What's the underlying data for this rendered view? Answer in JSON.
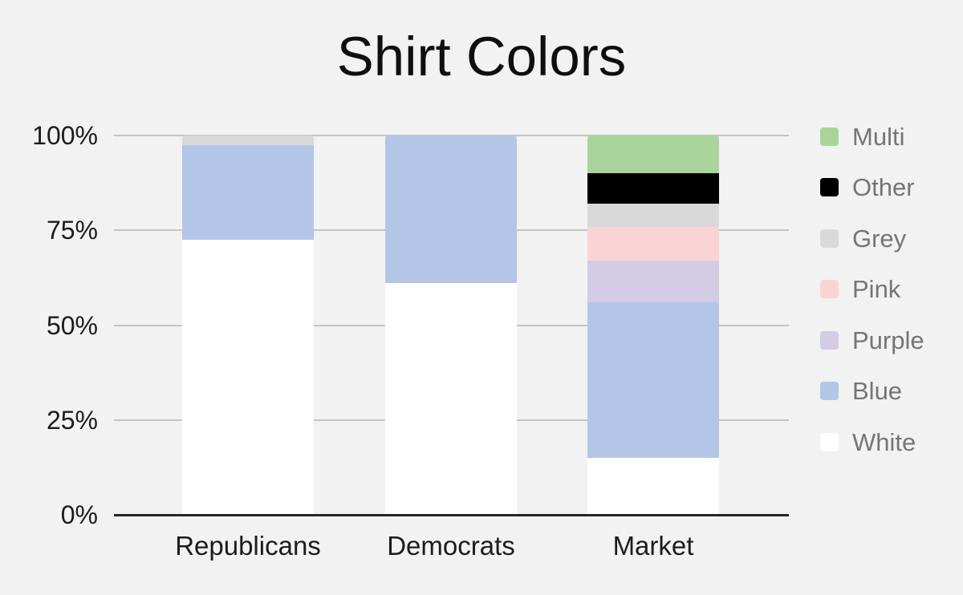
{
  "title": "Shirt Colors",
  "colors": {
    "background": "#f2f2f2",
    "gridline": "#c4c4c4",
    "axis_line": "#262626",
    "axis_label_text": "#1c1c1c",
    "title_text": "#0f0f0f",
    "legend_label_text": "#757575"
  },
  "chart_data": {
    "type": "bar",
    "stacked": true,
    "units": "percent",
    "title": "Shirt Colors",
    "xlabel": "",
    "ylabel": "",
    "ylim": [
      0,
      100
    ],
    "grid": true,
    "legend_position": "right",
    "categories": [
      "Republicans",
      "Democrats",
      "Market"
    ],
    "series": [
      {
        "name": "White",
        "color": "#ffffff",
        "values": [
          72.5,
          61,
          15
        ]
      },
      {
        "name": "Blue",
        "color": "#b4c6e7",
        "values": [
          25,
          39,
          41
        ]
      },
      {
        "name": "Purple",
        "color": "#d3cce4",
        "values": [
          0,
          0,
          11
        ]
      },
      {
        "name": "Pink",
        "color": "#fad4d4",
        "values": [
          0,
          0,
          9
        ]
      },
      {
        "name": "Grey",
        "color": "#d9d9d9",
        "values": [
          2.5,
          0,
          6
        ]
      },
      {
        "name": "Other",
        "color": "#000000",
        "values": [
          0,
          0,
          8
        ]
      },
      {
        "name": "Multi",
        "color": "#abd49c",
        "values": [
          0,
          0,
          10
        ]
      }
    ],
    "legend_order": [
      "Multi",
      "Other",
      "Grey",
      "Pink",
      "Purple",
      "Blue",
      "White"
    ],
    "y_ticks": [
      {
        "label": "0%",
        "value": 0
      },
      {
        "label": "25%",
        "value": 25
      },
      {
        "label": "50%",
        "value": 50
      },
      {
        "label": "75%",
        "value": 75
      },
      {
        "label": "100%",
        "value": 100
      }
    ]
  }
}
